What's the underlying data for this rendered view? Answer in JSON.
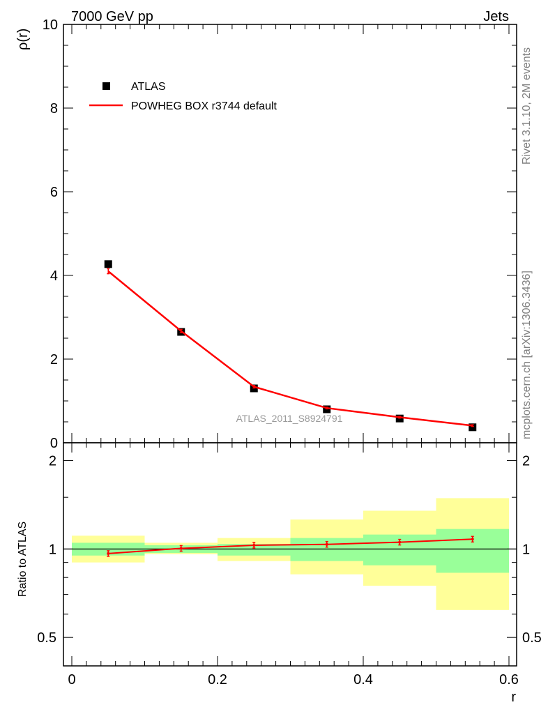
{
  "header": {
    "left": "7000 GeV pp",
    "right": "Jets"
  },
  "side_texts": {
    "rivet": "Rivet 3.1.10,  2M events",
    "mcplots": "mcplots.cern.ch [arXiv:1306.3436]"
  },
  "watermark": "ATLAS_2011_S8924791",
  "colors": {
    "data": "#000000",
    "mc": "#ff0000",
    "band_inner": "#99ff99",
    "band_outer": "#ffff99"
  },
  "chart_data": [
    {
      "type": "line",
      "panel": "main",
      "ylabel": "ρ(r)",
      "xlim": [
        0,
        0.6
      ],
      "ylim": [
        0,
        10
      ],
      "yticks": [
        "0",
        "2",
        "4",
        "6",
        "8",
        "10"
      ],
      "legend": {
        "placement": "top-left",
        "entries": [
          "ATLAS",
          "POWHEG BOX r3744 default"
        ]
      },
      "series": [
        {
          "name": "ATLAS",
          "style": "markers",
          "x": [
            0.05,
            0.15,
            0.25,
            0.35,
            0.45,
            0.55
          ],
          "y": [
            4.27,
            2.65,
            1.3,
            0.8,
            0.58,
            0.37
          ]
        },
        {
          "name": "POWHEG BOX r3744 default",
          "style": "line",
          "x": [
            0.05,
            0.15,
            0.25,
            0.35,
            0.45,
            0.55
          ],
          "y": [
            4.1,
            2.67,
            1.34,
            0.83,
            0.61,
            0.41
          ],
          "err": [
            0.06,
            0.04,
            0.03,
            0.02,
            0.02,
            0.02
          ]
        }
      ]
    },
    {
      "type": "line",
      "panel": "ratio",
      "xlabel": "r",
      "ylabel": "Ratio to ATLAS",
      "xlim": [
        0,
        0.6
      ],
      "ylim": [
        0.4,
        2.3
      ],
      "log_y": true,
      "yticks": [
        "0.5",
        "1",
        "2"
      ],
      "xticks": [
        "0",
        "0.2",
        "0.4",
        "0.6"
      ],
      "bins": [
        [
          0,
          0.1
        ],
        [
          0.1,
          0.2
        ],
        [
          0.2,
          0.3
        ],
        [
          0.3,
          0.4
        ],
        [
          0.4,
          0.5
        ],
        [
          0.5,
          0.6
        ]
      ],
      "band_inner": {
        "low": [
          0.95,
          0.97,
          0.95,
          0.91,
          0.88,
          0.83
        ],
        "high": [
          1.05,
          1.03,
          1.04,
          1.09,
          1.12,
          1.17
        ]
      },
      "band_outer": {
        "low": [
          0.9,
          0.96,
          0.91,
          0.82,
          0.75,
          0.62
        ],
        "high": [
          1.11,
          1.05,
          1.09,
          1.26,
          1.35,
          1.49
        ]
      },
      "series": [
        {
          "name": "POWHEG BOX r3744 default",
          "x": [
            0.05,
            0.15,
            0.25,
            0.35,
            0.45,
            0.55
          ],
          "y": [
            0.965,
            1.005,
            1.03,
            1.037,
            1.055,
            1.08
          ]
        }
      ]
    }
  ]
}
